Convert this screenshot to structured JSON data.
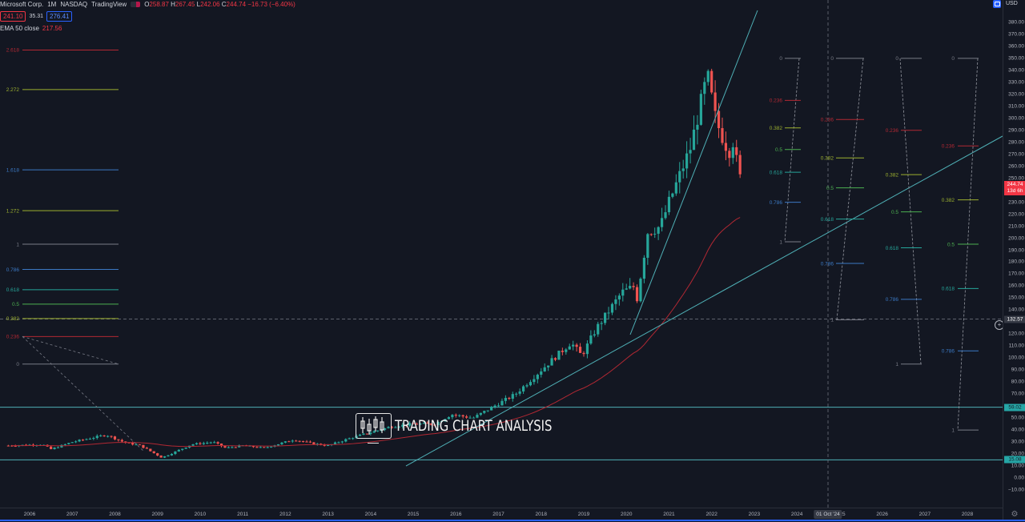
{
  "legend": {
    "symbol": "Microsoft Corp.",
    "interval": "1M",
    "exchange": "NASDAQ",
    "source": "TradingView",
    "ohlc": {
      "o_label": "O",
      "o": "258.87",
      "h_label": "H",
      "h": "267.45",
      "l_label": "L",
      "l": "242.06",
      "c_label": "C",
      "c": "244.74",
      "change": "−16.73 (−6.40%)"
    },
    "sell_price": "241.10",
    "spread": "35.31",
    "buy_price": "276.41",
    "indicator_name": "EMA 50 close",
    "indicator_value": "217.56"
  },
  "price_axis": {
    "currency": "USD",
    "ticks": [
      "380.00",
      "370.00",
      "360.00",
      "350.00",
      "340.00",
      "330.00",
      "320.00",
      "310.00",
      "300.00",
      "290.00",
      "280.00",
      "270.00",
      "260.00",
      "250.00",
      "230.00",
      "220.00",
      "210.00",
      "200.00",
      "190.00",
      "180.00",
      "170.00",
      "160.00",
      "150.00",
      "140.00",
      "120.00",
      "110.00",
      "100.00",
      "90.00",
      "80.00",
      "70.00",
      "50.00",
      "40.00",
      "30.00",
      "20.00",
      "10.00",
      "0.00",
      "−10.00"
    ],
    "last_price": "244.74",
    "countdown": "13d 6h",
    "crosshair_price": "132.57",
    "level_upper": "59.02",
    "level_lower": "15.08"
  },
  "time_axis": {
    "years": [
      "2006",
      "2007",
      "2008",
      "2009",
      "2010",
      "2011",
      "2012",
      "2013",
      "2014",
      "2015",
      "2016",
      "2017",
      "2018",
      "2019",
      "2020",
      "2021",
      "2022",
      "2023",
      "2024",
      "2025",
      "2026",
      "2027",
      "2028"
    ],
    "crosshair_date": "01 Oct '24"
  },
  "watermark": {
    "text": "TRADING CHART ANALYSIS"
  },
  "colors": {
    "background": "#131722",
    "up": "#26a69a",
    "down": "#ef5350",
    "ema": "#b22833",
    "trendline": "#4fb0b6",
    "fib_0": "#787b86",
    "fib_0236": "#b22833",
    "fib_0382": "#9cb02f",
    "fib_05": "#4caf50",
    "fib_0618": "#26a69a",
    "fib_0786": "#3b79c4",
    "fib_1272": "#9cb02f",
    "fib_1618": "#3b79c4",
    "fib_2272": "#9cb02f",
    "fib_2618": "#b22833"
  },
  "chart_data": {
    "type": "candlestick",
    "title": "Microsoft Corp. · 1M · NASDAQ",
    "xlabel": "",
    "ylabel": "USD",
    "ylim": [
      -10,
      385
    ],
    "xlim": [
      "2005-06",
      "2028-12"
    ],
    "grid": false,
    "last": {
      "open": 258.87,
      "high": 267.45,
      "low": 242.06,
      "close": 244.74,
      "change": -16.73,
      "change_pct": -6.4
    },
    "ema50_last": 217.56,
    "approx_yearly_closes": {
      "x": [
        "2006",
        "2007",
        "2008",
        "2009",
        "2010",
        "2011",
        "2012",
        "2013",
        "2014",
        "2015",
        "2016",
        "2017",
        "2018",
        "2019",
        "2020",
        "2021",
        "2022-09"
      ],
      "values": [
        29.9,
        35.6,
        19.4,
        30.5,
        27.9,
        26.0,
        26.7,
        37.4,
        46.5,
        55.5,
        62.1,
        85.5,
        101.6,
        157.7,
        222.4,
        336.3,
        244.7
      ]
    },
    "horizontal_levels": [
      59.02,
      15.08
    ],
    "crosshair": {
      "price": 132.57,
      "date": "01 Oct '24"
    },
    "fib_extension_left": {
      "levels": [
        {
          "ratio": "2.618",
          "price": 357
        },
        {
          "ratio": "2.272",
          "price": 324
        },
        {
          "ratio": "1.618",
          "price": 257
        },
        {
          "ratio": "1.272",
          "price": 223
        },
        {
          "ratio": "1",
          "price": 195
        },
        {
          "ratio": "0.786",
          "price": 174
        },
        {
          "ratio": "0.618",
          "price": 157
        },
        {
          "ratio": "0.5",
          "price": 145
        },
        {
          "ratio": "0.382",
          "price": 133
        },
        {
          "ratio": "0.236",
          "price": 118
        },
        {
          "ratio": "0",
          "price": 95
        }
      ]
    },
    "fib_retracements": [
      {
        "levels": [
          {
            "ratio": "0",
            "price": 350
          },
          {
            "ratio": "0.236",
            "price": 315
          },
          {
            "ratio": "0.382",
            "price": 292
          },
          {
            "ratio": "0.5",
            "price": 274
          },
          {
            "ratio": "0.618",
            "price": 255
          },
          {
            "ratio": "0.786",
            "price": 230
          },
          {
            "ratio": "1",
            "price": 197
          }
        ]
      },
      {
        "levels": [
          {
            "ratio": "0",
            "price": 350
          },
          {
            "ratio": "0.236",
            "price": 299
          },
          {
            "ratio": "0.382",
            "price": 267
          },
          {
            "ratio": "0.5",
            "price": 242
          },
          {
            "ratio": "0.618",
            "price": 216
          },
          {
            "ratio": "0.786",
            "price": 179
          },
          {
            "ratio": "1",
            "price": 132
          }
        ]
      },
      {
        "levels": [
          {
            "ratio": "0",
            "price": 350
          },
          {
            "ratio": "0.236",
            "price": 290
          },
          {
            "ratio": "0.382",
            "price": 253
          },
          {
            "ratio": "0.5",
            "price": 222
          },
          {
            "ratio": "0.618",
            "price": 192
          },
          {
            "ratio": "0.786",
            "price": 149
          },
          {
            "ratio": "1",
            "price": 95
          }
        ]
      },
      {
        "levels": [
          {
            "ratio": "0",
            "price": 350
          },
          {
            "ratio": "0.236",
            "price": 277
          },
          {
            "ratio": "0.382",
            "price": 232
          },
          {
            "ratio": "0.5",
            "price": 195
          },
          {
            "ratio": "0.618",
            "price": 158
          },
          {
            "ratio": "0.786",
            "price": 106
          },
          {
            "ratio": "1",
            "price": 40
          }
        ]
      }
    ],
    "trendlines": [
      {
        "from": [
          "2014-11",
          17
        ],
        "to": [
          "2022-06",
          380
        ]
      },
      {
        "from": [
          "2020-03",
          130
        ],
        "to": [
          "2022-12",
          388
        ]
      }
    ]
  }
}
